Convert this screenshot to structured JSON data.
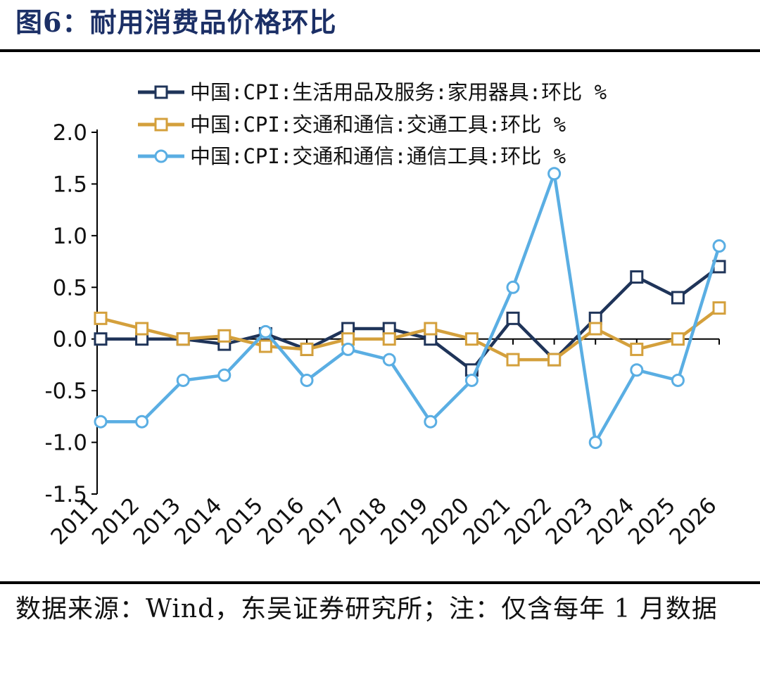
{
  "header": {
    "title": "图6：耐用消费品价格环比"
  },
  "footer": {
    "source": "数据来源：Wind，东吴证券研究所；注：仅含每年 1 月数据"
  },
  "chart_data": {
    "type": "line",
    "title": "图6：耐用消费品价格环比",
    "xlabel": "",
    "ylabel": "",
    "ylim": [
      -1.5,
      2.0
    ],
    "yticks": [
      "2.0",
      "1.5",
      "1.0",
      "0.5",
      "0.0",
      "-0.5",
      "-1.0",
      "-1.5"
    ],
    "ytick_values": [
      2.0,
      1.5,
      1.0,
      0.5,
      0.0,
      -0.5,
      -1.0,
      -1.5
    ],
    "categories": [
      "2011",
      "2012",
      "2013",
      "2014",
      "2015",
      "2016",
      "2017",
      "2018",
      "2019",
      "2020",
      "2021",
      "2022",
      "2023",
      "2024",
      "2025",
      "2026"
    ],
    "legend_position": "top",
    "series": [
      {
        "name": "中国:CPI:生活用品及服务:家用器具:环比 %",
        "color": "#1f3459",
        "marker": "square",
        "values": [
          0.0,
          0.0,
          0.0,
          -0.05,
          0.05,
          -0.1,
          0.1,
          0.1,
          0.0,
          -0.3,
          0.2,
          -0.2,
          0.2,
          0.6,
          0.4,
          0.7
        ]
      },
      {
        "name": "中国:CPI:交通和通信:交通工具:环比 %",
        "color": "#d4a03c",
        "marker": "square",
        "values": [
          0.2,
          0.1,
          0.0,
          0.03,
          -0.07,
          -0.1,
          0.0,
          0.0,
          0.1,
          0.0,
          -0.2,
          -0.2,
          0.1,
          -0.1,
          0.0,
          0.3
        ]
      },
      {
        "name": "中国:CPI:交通和通信:通信工具:环比 %",
        "color": "#5aaee3",
        "marker": "circle",
        "values": [
          -0.8,
          -0.8,
          -0.4,
          -0.35,
          0.07,
          -0.4,
          -0.1,
          -0.2,
          -0.8,
          -0.4,
          0.5,
          1.6,
          -1.0,
          -0.3,
          -0.4,
          0.9
        ]
      }
    ]
  }
}
